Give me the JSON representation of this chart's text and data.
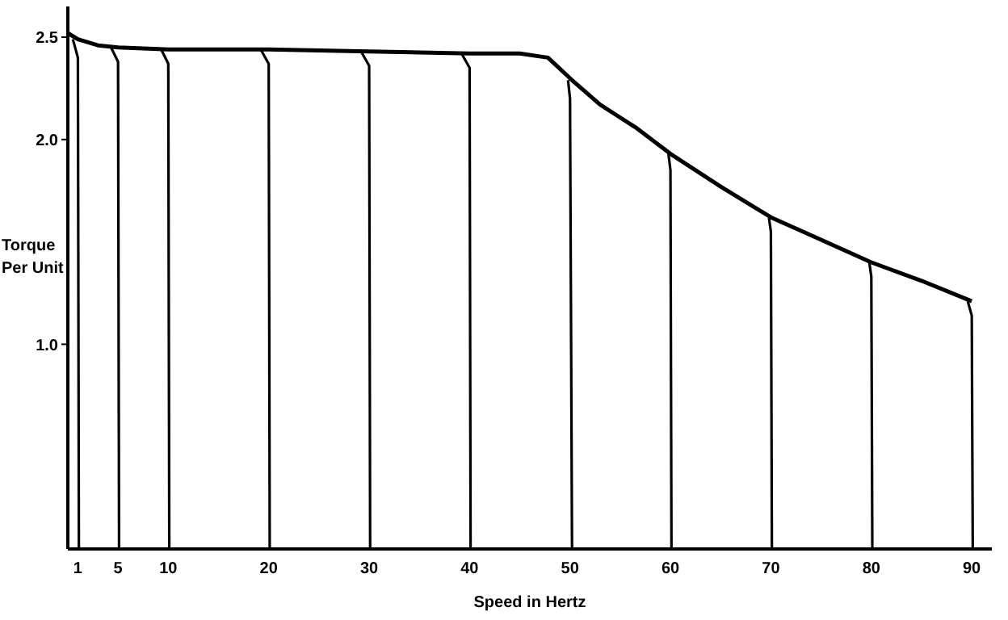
{
  "chart_data": {
    "type": "line",
    "xlabel": "Speed in Hertz",
    "ylabel": "Torque Per Unit",
    "xlim": [
      0,
      92
    ],
    "xticks": [
      1,
      5,
      10,
      20,
      30,
      40,
      50,
      60,
      70,
      80,
      90
    ],
    "ylim": [
      0,
      2.65
    ],
    "yticks": [
      {
        "value": 1,
        "label": "1.0"
      },
      {
        "value": 2,
        "label": "2.0"
      },
      {
        "value": 2.5,
        "label": "2.5"
      }
    ],
    "grid": false,
    "legend": false,
    "marker": "none",
    "line_style": "solid",
    "series": [
      {
        "color": "#000000",
        "x": [
          0,
          1,
          3,
          5,
          10,
          20,
          30,
          40,
          45,
          47.8,
          50.2,
          53,
          56.5,
          60,
          65,
          70,
          75,
          80,
          85,
          90
        ],
        "values": [
          2.52,
          2.49,
          2.46,
          2.45,
          2.44,
          2.44,
          2.43,
          2.42,
          2.42,
          2.4,
          2.29,
          2.17,
          2.06,
          1.93,
          1.77,
          1.62,
          1.51,
          1.4,
          1.31,
          1.21
        ]
      },
      {
        "color": "#000000",
        "x": [
          0.5,
          1,
          1.1
        ],
        "values": [
          2.49,
          2.4,
          0
        ]
      },
      {
        "color": "#000000",
        "x": [
          4.3,
          5,
          5.1
        ],
        "values": [
          2.45,
          2.38,
          0
        ]
      },
      {
        "color": "#000000",
        "x": [
          9.3,
          10,
          10.1
        ],
        "values": [
          2.44,
          2.37,
          0
        ]
      },
      {
        "color": "#000000",
        "x": [
          19.2,
          20,
          20.1
        ],
        "values": [
          2.44,
          2.37,
          0
        ]
      },
      {
        "color": "#000000",
        "x": [
          29.2,
          30,
          30.1
        ],
        "values": [
          2.43,
          2.36,
          0
        ]
      },
      {
        "color": "#000000",
        "x": [
          39.2,
          40,
          40.1
        ],
        "values": [
          2.42,
          2.35,
          0
        ]
      },
      {
        "color": "#000000",
        "x": [
          49.8,
          50,
          50.2
        ],
        "values": [
          2.29,
          2.2,
          0
        ]
      },
      {
        "color": "#000000",
        "x": [
          59.8,
          60,
          60.1
        ],
        "values": [
          1.93,
          1.85,
          0
        ]
      },
      {
        "color": "#000000",
        "x": [
          69.8,
          70,
          70.1
        ],
        "values": [
          1.62,
          1.55,
          0
        ]
      },
      {
        "color": "#000000",
        "x": [
          79.8,
          80,
          80.1
        ],
        "values": [
          1.4,
          1.33,
          0
        ]
      },
      {
        "color": "#000000",
        "x": [
          89.6,
          90,
          90.1
        ],
        "values": [
          1.21,
          1.14,
          0
        ]
      }
    ]
  }
}
